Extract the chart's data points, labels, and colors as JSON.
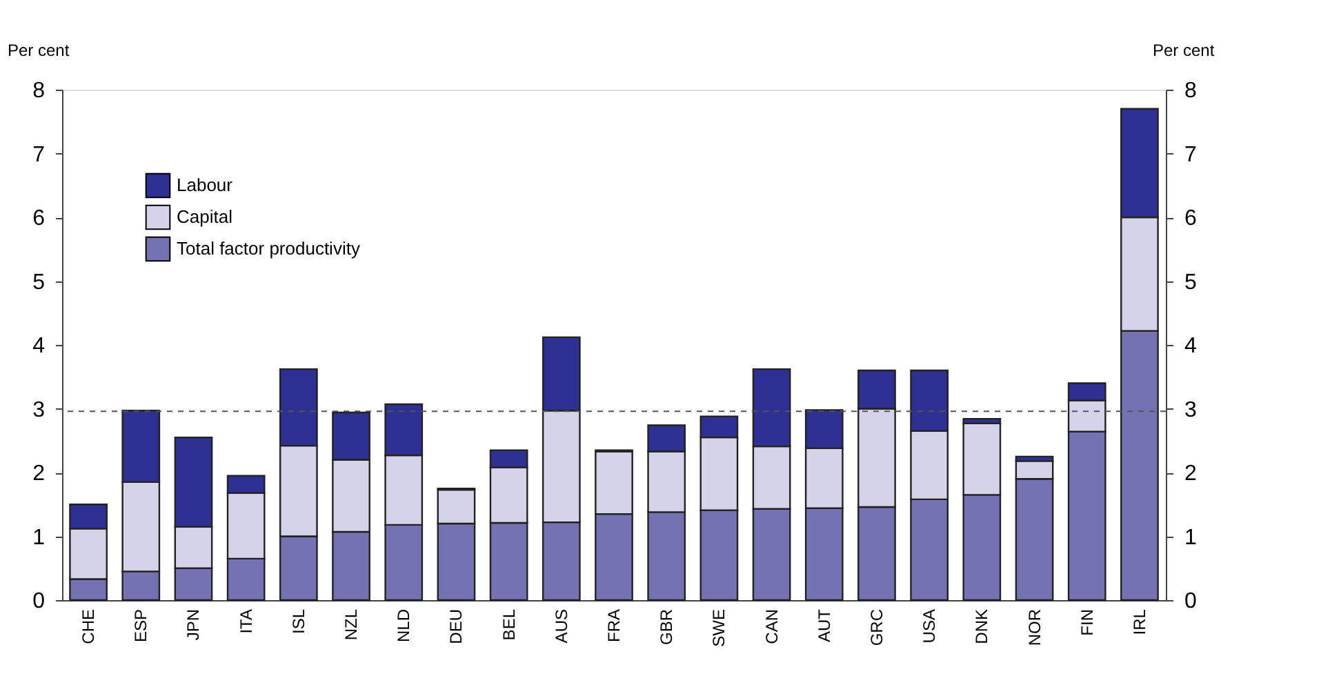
{
  "chart_data": {
    "type": "bar",
    "stacked": true,
    "ylabel": "Per cent",
    "y2label": "Per cent",
    "categories": [
      "CHE",
      "ESP",
      "JPN",
      "ITA",
      "ISL",
      "NZL",
      "NLD",
      "DEU",
      "BEL",
      "AUS",
      "FRA",
      "GBR",
      "SWE",
      "CAN",
      "AUT",
      "GRC",
      "USA",
      "DNK",
      "NOR",
      "FIN",
      "IRL"
    ],
    "series": [
      {
        "name": "Total factor productivity",
        "color": "#7472b2",
        "values": [
          0.33,
          0.45,
          0.5,
          0.65,
          1.0,
          1.07,
          1.18,
          1.2,
          1.21,
          1.22,
          1.35,
          1.38,
          1.41,
          1.43,
          1.44,
          1.46,
          1.58,
          1.65,
          1.9,
          2.64,
          4.22
        ]
      },
      {
        "name": "Capital",
        "color": "#d4d3ea",
        "values": [
          0.79,
          1.4,
          0.65,
          1.03,
          1.42,
          1.13,
          1.09,
          0.53,
          0.87,
          1.75,
          0.98,
          0.95,
          1.14,
          0.98,
          0.94,
          1.54,
          1.07,
          1.12,
          0.28,
          0.49,
          1.78
        ]
      },
      {
        "name": "Labour",
        "color": "#2e3192",
        "values": [
          0.38,
          1.12,
          1.4,
          0.27,
          1.2,
          0.74,
          0.8,
          0.02,
          0.27,
          1.15,
          0.02,
          0.41,
          0.33,
          1.21,
          0.6,
          0.6,
          0.95,
          0.07,
          0.07,
          0.27,
          1.7
        ]
      }
    ],
    "ylim": [
      0,
      8
    ],
    "yticks": [
      0,
      1,
      2,
      3,
      4,
      5,
      6,
      7,
      8
    ],
    "y2lim": [
      0,
      8
    ],
    "y2ticks": [
      0,
      1,
      2,
      3,
      4,
      5,
      6,
      7,
      8
    ],
    "ref_lines": [
      {
        "axis": "y",
        "value": 2.96,
        "line_style": "dashed",
        "color": "#555555"
      }
    ],
    "legend": "top left",
    "grid": false
  }
}
